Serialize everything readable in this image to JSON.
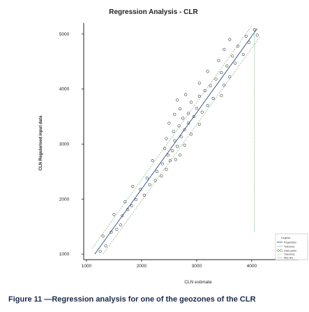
{
  "chart_data": {
    "type": "scatter",
    "title": "Regression Analysis - CLR",
    "xlabel": "CLN estimate",
    "ylabel": "CLN Regularised input data",
    "xlim": [
      950,
      4850
    ],
    "ylim": [
      900,
      5200
    ],
    "xticks": [
      1000,
      2000,
      3000,
      4000
    ],
    "yticks": [
      1000,
      2000,
      3000,
      4000,
      5000
    ],
    "grid": false,
    "legend_position": "bottom-right",
    "legend_title": "Legend",
    "legend": [
      "Regression",
      "Tolerance",
      "Data points",
      "Tolerance",
      "Max line"
    ],
    "points": [
      {
        "x": 1250,
        "y": 1050
      },
      {
        "x": 1350,
        "y": 1150
      },
      {
        "x": 1300,
        "y": 1330
      },
      {
        "x": 1450,
        "y": 1400
      },
      {
        "x": 1550,
        "y": 1450
      },
      {
        "x": 1620,
        "y": 1530
      },
      {
        "x": 1650,
        "y": 1700
      },
      {
        "x": 1500,
        "y": 1720
      },
      {
        "x": 1750,
        "y": 1810
      },
      {
        "x": 1820,
        "y": 1880
      },
      {
        "x": 1700,
        "y": 1950
      },
      {
        "x": 1900,
        "y": 1990
      },
      {
        "x": 2050,
        "y": 2070
      },
      {
        "x": 1980,
        "y": 2180
      },
      {
        "x": 1840,
        "y": 2230
      },
      {
        "x": 2150,
        "y": 2260
      },
      {
        "x": 2250,
        "y": 2340
      },
      {
        "x": 2100,
        "y": 2380
      },
      {
        "x": 2360,
        "y": 2420
      },
      {
        "x": 2280,
        "y": 2500
      },
      {
        "x": 2450,
        "y": 2540
      },
      {
        "x": 2380,
        "y": 2640
      },
      {
        "x": 2200,
        "y": 2700
      },
      {
        "x": 2520,
        "y": 2700
      },
      {
        "x": 2620,
        "y": 2720
      },
      {
        "x": 2480,
        "y": 2800
      },
      {
        "x": 2700,
        "y": 2800
      },
      {
        "x": 2560,
        "y": 2880
      },
      {
        "x": 2420,
        "y": 2920
      },
      {
        "x": 2650,
        "y": 2960
      },
      {
        "x": 2780,
        "y": 2980
      },
      {
        "x": 2600,
        "y": 3060
      },
      {
        "x": 2450,
        "y": 3100
      },
      {
        "x": 2720,
        "y": 3130
      },
      {
        "x": 2900,
        "y": 3180
      },
      {
        "x": 2580,
        "y": 3230
      },
      {
        "x": 2780,
        "y": 3260
      },
      {
        "x": 2680,
        "y": 3330
      },
      {
        "x": 2500,
        "y": 3380
      },
      {
        "x": 2850,
        "y": 3380
      },
      {
        "x": 3050,
        "y": 3360
      },
      {
        "x": 2750,
        "y": 3470
      },
      {
        "x": 2950,
        "y": 3500
      },
      {
        "x": 2600,
        "y": 3540
      },
      {
        "x": 2850,
        "y": 3560
      },
      {
        "x": 3100,
        "y": 3580
      },
      {
        "x": 2700,
        "y": 3640
      },
      {
        "x": 3000,
        "y": 3650
      },
      {
        "x": 3200,
        "y": 3700
      },
      {
        "x": 2900,
        "y": 3760
      },
      {
        "x": 2650,
        "y": 3800
      },
      {
        "x": 3300,
        "y": 3830
      },
      {
        "x": 3050,
        "y": 3870
      },
      {
        "x": 2800,
        "y": 3900
      },
      {
        "x": 3450,
        "y": 3880
      },
      {
        "x": 3150,
        "y": 3970
      },
      {
        "x": 3250,
        "y": 4060
      },
      {
        "x": 3500,
        "y": 4070
      },
      {
        "x": 3050,
        "y": 4110
      },
      {
        "x": 3350,
        "y": 4180
      },
      {
        "x": 3600,
        "y": 4220
      },
      {
        "x": 3450,
        "y": 4300
      },
      {
        "x": 3200,
        "y": 4320
      },
      {
        "x": 3550,
        "y": 4420
      },
      {
        "x": 3700,
        "y": 4470
      },
      {
        "x": 3400,
        "y": 4520
      },
      {
        "x": 3650,
        "y": 4600
      },
      {
        "x": 3850,
        "y": 4630
      },
      {
        "x": 3500,
        "y": 4720
      },
      {
        "x": 3750,
        "y": 4780
      },
      {
        "x": 3950,
        "y": 4850
      },
      {
        "x": 3600,
        "y": 4900
      },
      {
        "x": 3900,
        "y": 4960
      },
      {
        "x": 4100,
        "y": 4980
      },
      {
        "x": 4050,
        "y": 5080
      }
    ],
    "regression_line": {
      "x": [
        1150,
        4100
      ],
      "y": [
        1000,
        5100
      ]
    },
    "tolerance_lower": {
      "x": [
        1300,
        4150
      ],
      "y": [
        1000,
        4950
      ]
    },
    "tolerance_upper": {
      "x": [
        1100,
        4000
      ],
      "y": [
        1100,
        5150
      ]
    },
    "max_line_x": 4050
  },
  "caption": "Figure 11 —Regression analysis for one of the geozones of the CLR"
}
